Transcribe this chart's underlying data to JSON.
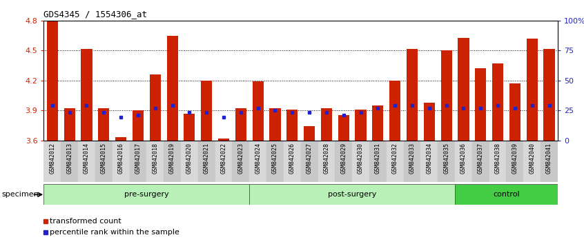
{
  "title": "GDS4345 / 1554306_at",
  "samples": [
    "GSM842012",
    "GSM842013",
    "GSM842014",
    "GSM842015",
    "GSM842016",
    "GSM842017",
    "GSM842018",
    "GSM842019",
    "GSM842020",
    "GSM842021",
    "GSM842022",
    "GSM842023",
    "GSM842024",
    "GSM842025",
    "GSM842026",
    "GSM842027",
    "GSM842028",
    "GSM842029",
    "GSM842030",
    "GSM842031",
    "GSM842032",
    "GSM842033",
    "GSM842034",
    "GSM842035",
    "GSM842036",
    "GSM842037",
    "GSM842038",
    "GSM842039",
    "GSM842040",
    "GSM842041"
  ],
  "bar_values": [
    4.8,
    3.92,
    4.52,
    3.92,
    3.63,
    3.9,
    4.26,
    4.65,
    3.87,
    4.2,
    3.62,
    3.92,
    4.19,
    3.92,
    3.91,
    3.74,
    3.92,
    3.85,
    3.91,
    3.95,
    4.2,
    4.52,
    3.98,
    4.5,
    4.63,
    4.32,
    4.37,
    4.17,
    4.62,
    4.52
  ],
  "blue_values": [
    3.95,
    3.88,
    3.95,
    3.88,
    3.83,
    3.85,
    3.92,
    3.95,
    3.88,
    3.88,
    3.83,
    3.88,
    3.92,
    3.9,
    3.88,
    3.88,
    3.88,
    3.85,
    3.88,
    3.92,
    3.95,
    3.95,
    3.92,
    3.95,
    3.92,
    3.92,
    3.95,
    3.92,
    3.95,
    3.95
  ],
  "groups": [
    {
      "name": "pre-surgery",
      "start": 0,
      "end": 12,
      "color": "#b8f0b8"
    },
    {
      "name": "post-surgery",
      "start": 12,
      "end": 24,
      "color": "#b8f0b8"
    },
    {
      "name": "control",
      "start": 24,
      "end": 30,
      "color": "#44cc44"
    }
  ],
  "ymin": 3.6,
  "ymax": 4.8,
  "bar_color": "#cc2200",
  "blue_color": "#2222cc",
  "yticks_left": [
    3.6,
    3.9,
    4.2,
    4.5,
    4.8
  ],
  "ytick_labels_right": [
    "0",
    "25",
    "50",
    "75",
    "100%"
  ],
  "legend_items": [
    {
      "color": "#cc2200",
      "label": "transformed count"
    },
    {
      "color": "#2222cc",
      "label": "percentile rank within the sample"
    }
  ]
}
